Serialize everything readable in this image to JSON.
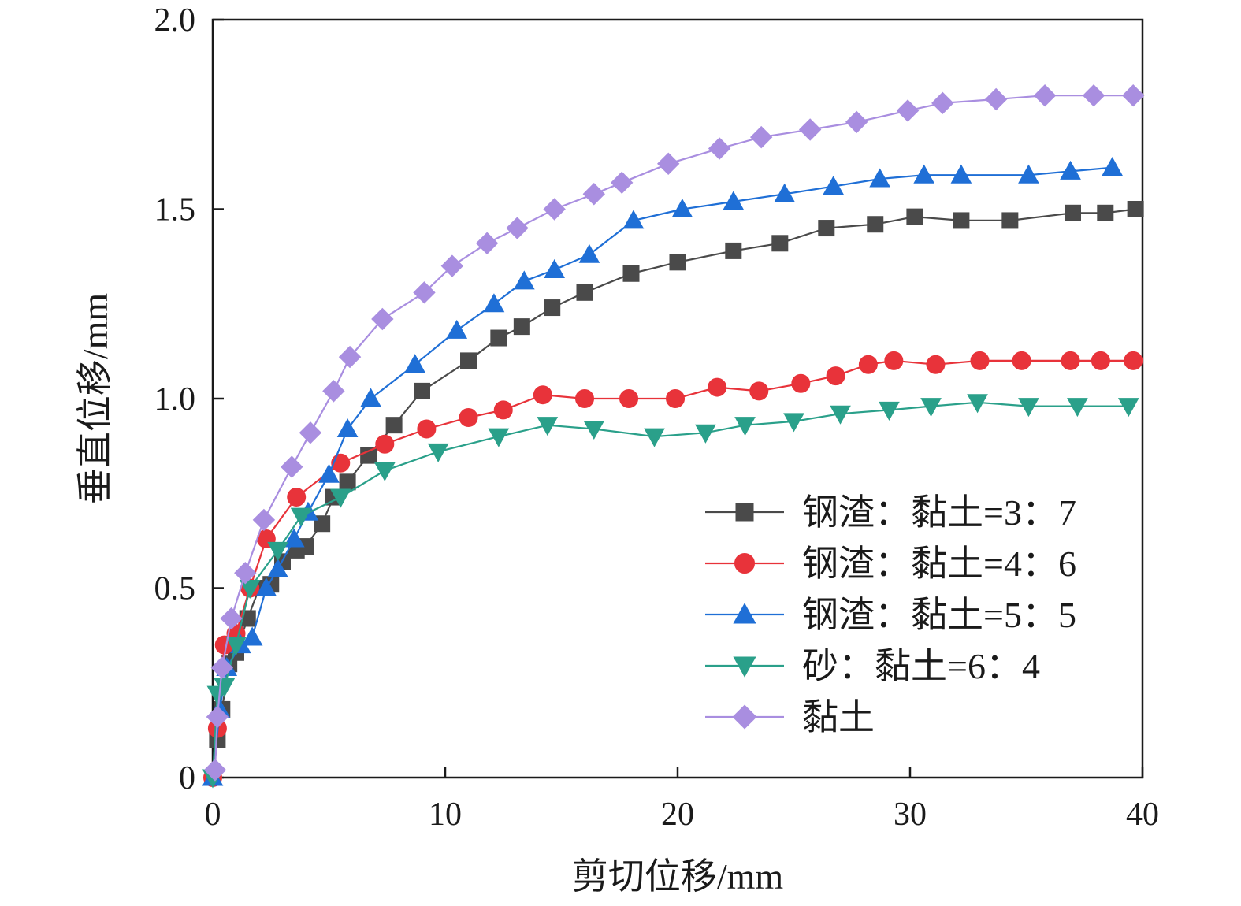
{
  "chart_data": {
    "type": "line",
    "title": "",
    "xlabel": "剪切位移/mm",
    "ylabel": "垂直位移/mm",
    "xlim": [
      0,
      40
    ],
    "ylim": [
      0,
      2.0
    ],
    "xticks": [
      0,
      10,
      20,
      30,
      40
    ],
    "xtick_labels": [
      "0",
      "10",
      "20",
      "30",
      "40"
    ],
    "yticks": [
      0,
      0.5,
      1.0,
      1.5,
      2.0
    ],
    "ytick_labels": [
      "0",
      "0.5",
      "1.0",
      "1.5",
      "2.0"
    ],
    "grid": false,
    "legend_position": "lower-right",
    "series": [
      {
        "name": "钢渣：黏土=3：7",
        "color": "#4a4a4a",
        "marker": "square",
        "x": [
          0,
          0.2,
          0.4,
          0.7,
          1.0,
          1.5,
          2.0,
          2.5,
          3.0,
          3.6,
          4.0,
          4.7,
          5.2,
          5.8,
          6.7,
          7.8,
          9.0,
          11.0,
          12.3,
          13.3,
          14.6,
          16.0,
          18.0,
          20.0,
          22.4,
          24.4,
          26.4,
          28.5,
          30.2,
          32.2,
          34.3,
          37.0,
          38.4,
          39.7
        ],
        "y": [
          0,
          0.1,
          0.18,
          0.3,
          0.33,
          0.42,
          0.5,
          0.51,
          0.57,
          0.6,
          0.61,
          0.67,
          0.74,
          0.78,
          0.85,
          0.93,
          1.02,
          1.1,
          1.16,
          1.19,
          1.24,
          1.28,
          1.33,
          1.36,
          1.39,
          1.41,
          1.45,
          1.46,
          1.48,
          1.47,
          1.47,
          1.49,
          1.49,
          1.5
        ]
      },
      {
        "name": "钢渣：黏土=4：6",
        "color": "#e8333a",
        "marker": "circle",
        "x": [
          0,
          0.2,
          0.5,
          1.0,
          1.6,
          2.3,
          3.6,
          5.5,
          7.4,
          9.2,
          11.0,
          12.5,
          14.2,
          16.0,
          17.9,
          19.9,
          21.7,
          23.5,
          25.3,
          26.8,
          28.2,
          29.3,
          31.1,
          33.0,
          34.8,
          36.9,
          38.2,
          39.6
        ],
        "y": [
          0,
          0.13,
          0.35,
          0.38,
          0.5,
          0.63,
          0.74,
          0.83,
          0.88,
          0.92,
          0.95,
          0.97,
          1.01,
          1.0,
          1.0,
          1.0,
          1.03,
          1.02,
          1.04,
          1.06,
          1.09,
          1.1,
          1.09,
          1.1,
          1.1,
          1.1,
          1.1,
          1.1
        ]
      },
      {
        "name": "钢渣：黏土=5：5",
        "color": "#1f6fd6",
        "marker": "triangle-up",
        "x": [
          0,
          0.3,
          0.6,
          1.2,
          1.7,
          2.3,
          2.8,
          3.5,
          4.1,
          5.0,
          5.8,
          6.8,
          8.7,
          10.5,
          12.1,
          13.4,
          14.7,
          16.2,
          18.1,
          20.2,
          22.4,
          24.6,
          26.7,
          28.7,
          30.6,
          32.2,
          35.1,
          36.9,
          38.7
        ],
        "y": [
          0,
          0.18,
          0.29,
          0.35,
          0.37,
          0.5,
          0.55,
          0.63,
          0.7,
          0.8,
          0.92,
          1.0,
          1.09,
          1.18,
          1.25,
          1.31,
          1.34,
          1.38,
          1.47,
          1.5,
          1.52,
          1.54,
          1.56,
          1.58,
          1.59,
          1.59,
          1.59,
          1.6,
          1.61
        ]
      },
      {
        "name": "砂：黏土=6：4",
        "color": "#2aa08a",
        "marker": "triangle-down",
        "x": [
          0,
          0.2,
          0.5,
          1.0,
          1.6,
          2.8,
          3.8,
          5.5,
          7.4,
          9.7,
          12.3,
          14.4,
          16.4,
          19.0,
          21.2,
          22.9,
          25.0,
          27.0,
          29.1,
          30.9,
          32.9,
          35.1,
          37.2,
          39.4
        ],
        "y": [
          0,
          0.22,
          0.24,
          0.35,
          0.5,
          0.6,
          0.69,
          0.74,
          0.81,
          0.86,
          0.9,
          0.93,
          0.92,
          0.9,
          0.91,
          0.93,
          0.94,
          0.96,
          0.97,
          0.98,
          0.99,
          0.98,
          0.98,
          0.98
        ]
      },
      {
        "name": "黏土",
        "color": "#a98ee0",
        "marker": "diamond",
        "x": [
          0.1,
          0.2,
          0.4,
          0.8,
          1.4,
          2.2,
          3.4,
          4.2,
          5.2,
          5.9,
          7.3,
          9.1,
          10.3,
          11.8,
          13.1,
          14.7,
          16.4,
          17.6,
          19.6,
          21.8,
          23.6,
          25.7,
          27.7,
          29.9,
          31.4,
          33.7,
          35.8,
          37.9,
          39.6
        ],
        "y": [
          0.02,
          0.16,
          0.29,
          0.42,
          0.54,
          0.68,
          0.82,
          0.91,
          1.02,
          1.11,
          1.21,
          1.28,
          1.35,
          1.41,
          1.45,
          1.5,
          1.54,
          1.57,
          1.62,
          1.66,
          1.69,
          1.71,
          1.73,
          1.76,
          1.78,
          1.79,
          1.8,
          1.8,
          1.8
        ]
      }
    ]
  }
}
